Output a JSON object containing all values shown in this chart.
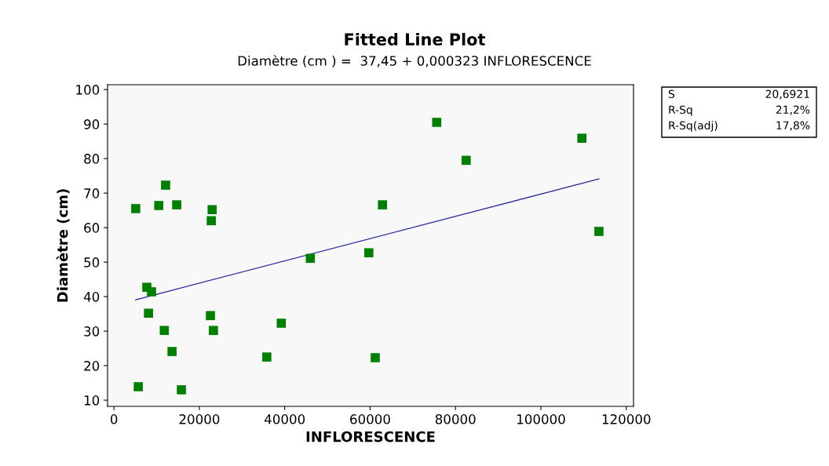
{
  "chart_data": {
    "type": "scatter",
    "title": "Fitted Line Plot",
    "subtitle": "Diamètre (cm ) =  37,45 + 0,000323 INFLORESCENCE",
    "xlabel": "INFLORESCENCE",
    "ylabel": "Diamètre (cm)",
    "xlim": [
      -1500,
      121700
    ],
    "ylim": [
      8.2,
      101.4
    ],
    "xticks": [
      0,
      20000,
      40000,
      60000,
      80000,
      100000,
      120000
    ],
    "yticks": [
      10,
      20,
      30,
      40,
      50,
      60,
      70,
      80,
      90,
      100
    ],
    "grid": false,
    "legend": false,
    "series": [
      {
        "color": "#008000",
        "marker": "square",
        "x": [
          5100,
          5700,
          7700,
          8800,
          8100,
          10500,
          12100,
          14700,
          11800,
          13600,
          15800,
          23000,
          22800,
          22600,
          23300,
          35800,
          39200,
          46000,
          59700,
          61200,
          62900,
          75600,
          82500,
          109600,
          113600
        ],
        "values": [
          65.5,
          13.9,
          42.7,
          41.4,
          35.2,
          66.4,
          72.3,
          66.6,
          30.2,
          24.1,
          13.0,
          65.2,
          62.0,
          34.5,
          30.2,
          22.5,
          32.3,
          51.1,
          52.7,
          22.3,
          66.6,
          90.5,
          79.5,
          85.9,
          58.9
        ]
      },
      {
        "type": "line",
        "color": "#2a2aa0",
        "marker": "none",
        "line_style": "solid",
        "x": [
          5100,
          113600
        ],
        "values": [
          39.1,
          74.1
        ]
      }
    ],
    "annotations": [
      "S",
      "20,6921",
      "R-Sq",
      "21,2%",
      "R-Sq(adj)",
      "17,8%"
    ]
  }
}
